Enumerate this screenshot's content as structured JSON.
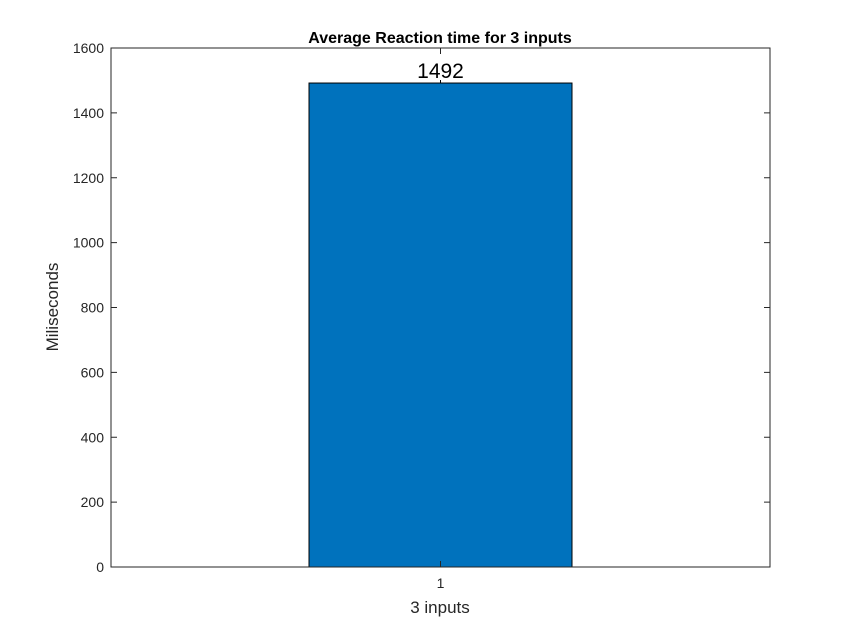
{
  "chart_data": {
    "type": "bar",
    "title": "Average Reaction time for 3 inputs",
    "xlabel": "3 inputs",
    "ylabel": "Miliseconds",
    "categories": [
      "1"
    ],
    "values": [
      1492
    ],
    "data_labels": [
      "1492"
    ],
    "ylim": [
      0,
      1600
    ],
    "yticks": [
      0,
      200,
      400,
      600,
      800,
      1000,
      1200,
      1400,
      1600
    ],
    "ytick_labels": [
      "0",
      "200",
      "400",
      "600",
      "800",
      "1000",
      "1200",
      "1400",
      "1600"
    ],
    "grid": false,
    "bar_color": "#0072BD"
  }
}
